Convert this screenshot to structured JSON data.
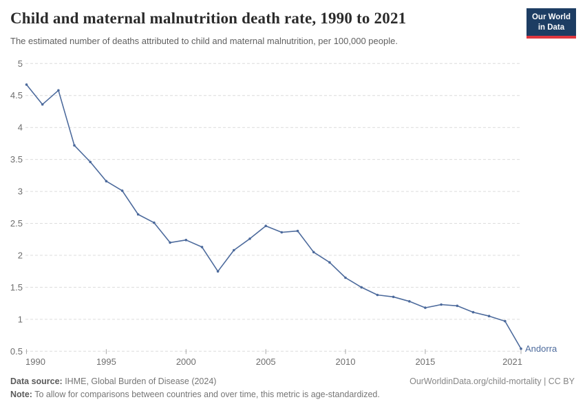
{
  "header": {
    "title": "Child and maternal malnutrition death rate, 1990 to 2021",
    "subtitle": "The estimated number of deaths attributed to child and maternal malnutrition, per 100,000 people.",
    "logo": {
      "line1": "Our World",
      "line2": "in Data",
      "bg_color": "#1d3d63",
      "stripe_color": "#e0373f"
    }
  },
  "chart_data": {
    "type": "line",
    "title": "Child and maternal malnutrition death rate, 1990 to 2021",
    "xlabel": "",
    "ylabel": "",
    "xlim": [
      1990,
      2021
    ],
    "ylim": [
      0.5,
      5
    ],
    "x_ticks": [
      1990,
      1995,
      2000,
      2005,
      2010,
      2015,
      2021
    ],
    "y_ticks": [
      0.5,
      1,
      1.5,
      2,
      2.5,
      3,
      3.5,
      4,
      4.5,
      5
    ],
    "grid": "horizontal-dashed",
    "legend_position": "end-of-line-label",
    "end_label": "Andorra",
    "x": [
      1990,
      1991,
      1992,
      1993,
      1994,
      1995,
      1996,
      1997,
      1998,
      1999,
      2000,
      2001,
      2002,
      2003,
      2004,
      2005,
      2006,
      2007,
      2008,
      2009,
      2010,
      2011,
      2012,
      2013,
      2014,
      2015,
      2016,
      2017,
      2018,
      2019,
      2020,
      2021
    ],
    "series": [
      {
        "name": "Andorra",
        "color": "#4c6a9c",
        "values": [
          4.67,
          4.36,
          4.58,
          3.72,
          3.46,
          3.16,
          3.01,
          2.64,
          2.51,
          2.2,
          2.24,
          2.13,
          1.75,
          2.08,
          2.26,
          2.46,
          2.36,
          2.38,
          2.05,
          1.89,
          1.65,
          1.5,
          1.38,
          1.35,
          1.28,
          1.18,
          1.23,
          1.21,
          1.11,
          1.05,
          0.97,
          0.54
        ]
      }
    ],
    "axis_label_color": "#6e6e6e",
    "gridline_color": "#dcdcdc"
  },
  "footer": {
    "datasource_label": "Data source:",
    "datasource_text": " IHME, Global Burden of Disease (2024)",
    "link": "OurWorldinData.org/child-mortality | CC BY",
    "note_label": "Note:",
    "note_text": " To allow for comparisons between countries and over time, this metric is age-standardized."
  }
}
